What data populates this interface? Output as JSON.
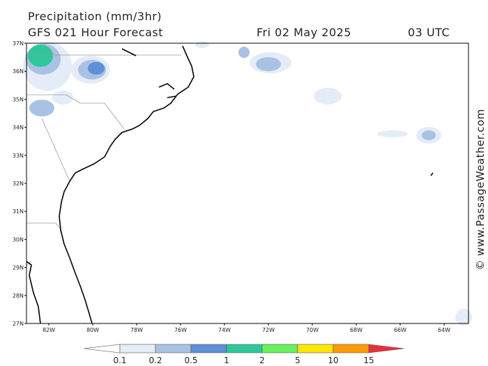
{
  "header": {
    "title": "Precipitation (mm/3hr)",
    "subtitle": "GFS 021 Hour Forecast",
    "date": "Fri 02 May 2025",
    "time": "03 UTC"
  },
  "map": {
    "lat_labels": [
      "37N",
      "36N",
      "35N",
      "34N",
      "33N",
      "32N",
      "31N",
      "30N",
      "29N",
      "28N",
      "27N"
    ],
    "lon_labels": [
      "82W",
      "80W",
      "78W",
      "76W",
      "74W",
      "72W",
      "70W",
      "68W",
      "66W",
      "64W"
    ]
  },
  "legend": {
    "labels": [
      "0.1",
      "0.2",
      "0.5",
      "1",
      "2",
      "5",
      "10",
      "15"
    ],
    "colors": [
      "#ffffff",
      "#e4ecf7",
      "#a9c1e3",
      "#5e8fd8",
      "#2dc79b",
      "#68f05e",
      "#ffe600",
      "#ff9a00",
      "#e8303a"
    ]
  },
  "credit": "© www.PassageWeather.com"
}
